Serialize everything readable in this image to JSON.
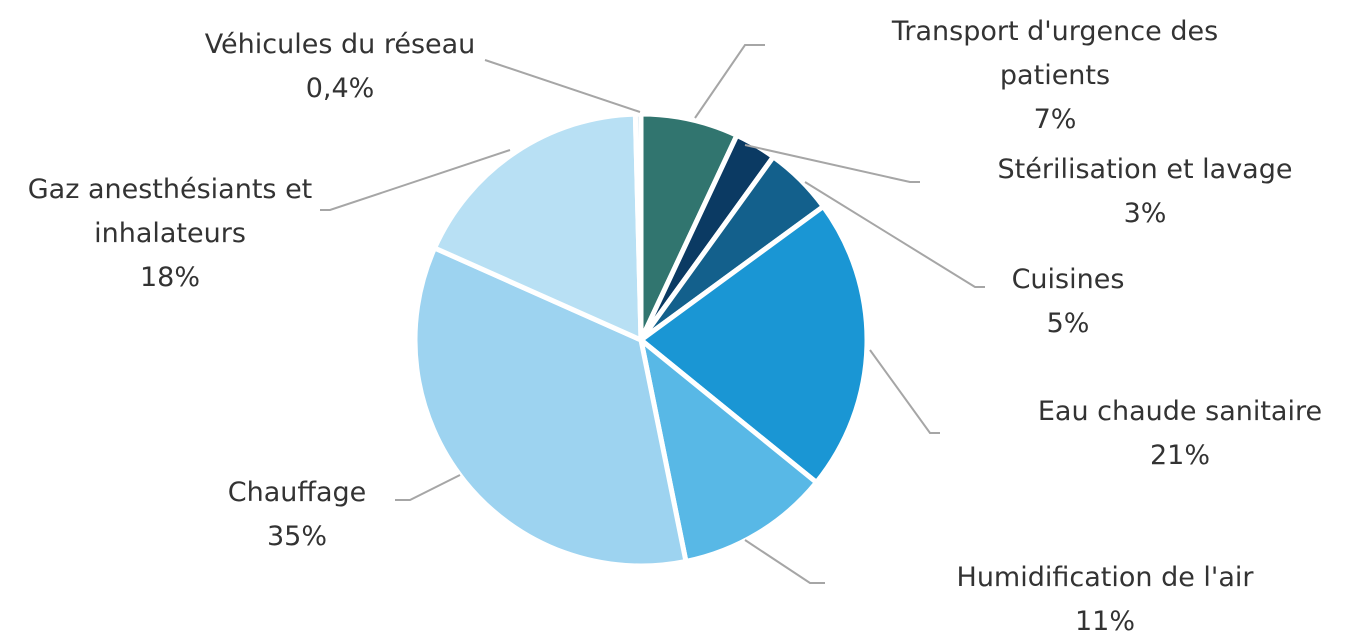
{
  "chart_data": {
    "type": "pie",
    "categories": [
      "Transport d'urgence des patients",
      "Stérilisation et lavage",
      "Cuisines",
      "Eau chaude sanitaire",
      "Humidification de l'air",
      "Chauffage",
      "Gaz anesthésiants et inhalateurs",
      "Véhicules du réseau"
    ],
    "values": [
      7,
      3,
      5,
      21,
      11,
      35,
      18,
      0.4
    ],
    "value_labels": [
      "7%",
      "3%",
      "5%",
      "21%",
      "11%",
      "35%",
      "18%",
      "0,4%"
    ],
    "colors": [
      "#31756f",
      "#0b3a63",
      "#13608c",
      "#1a96d4",
      "#58b8e6",
      "#9dd3f0",
      "#b8e0f4",
      "#cfe3ee"
    ]
  }
}
